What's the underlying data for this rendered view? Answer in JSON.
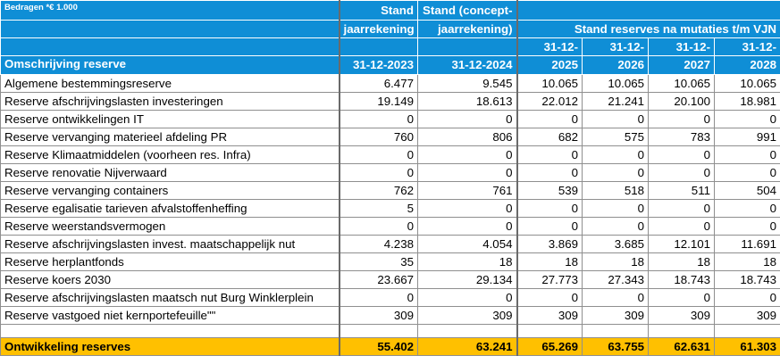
{
  "header": {
    "amounts_note": "Bedragen *€ 1.000",
    "col_description": "Omschrijving reserve",
    "col_stand_jaarrekening_l1": "Stand",
    "col_stand_jaarrekening_l2": "jaarrekening",
    "col_stand_concept_l1": "Stand (concept-",
    "col_stand_concept_l2": "jaarrekening)",
    "col_group_mutaties": "Stand reserves na mutaties t/m VJN",
    "dates": [
      "31-12-2023",
      "31-12-2024"
    ],
    "proj_dates_l1": [
      "31-12-",
      "31-12-",
      "31-12-",
      "31-12-"
    ],
    "proj_dates_l2": [
      "2025",
      "2026",
      "2027",
      "2028"
    ]
  },
  "rows": [
    {
      "name": "Algemene bestemmingsreserve",
      "v": [
        "6.477",
        "9.545",
        "10.065",
        "10.065",
        "10.065",
        "10.065"
      ]
    },
    {
      "name": "Reserve afschrijvingslasten investeringen",
      "v": [
        "19.149",
        "18.613",
        "22.012",
        "21.241",
        "20.100",
        "18.981"
      ]
    },
    {
      "name": "Reserve ontwikkelingen IT",
      "v": [
        "0",
        "0",
        "0",
        "0",
        "0",
        "0"
      ]
    },
    {
      "name": "Reserve vervanging materieel afdeling PR",
      "v": [
        "760",
        "806",
        "682",
        "575",
        "783",
        "991"
      ]
    },
    {
      "name": "Reserve Klimaatmiddelen (voorheen res. Infra)",
      "v": [
        "0",
        "0",
        "0",
        "0",
        "0",
        "0"
      ]
    },
    {
      "name": "Reserve renovatie Nijverwaard",
      "v": [
        "0",
        "0",
        "0",
        "0",
        "0",
        "0"
      ]
    },
    {
      "name": "Reserve vervanging containers",
      "v": [
        "762",
        "761",
        "539",
        "518",
        "511",
        "504"
      ]
    },
    {
      "name": "Reserve egalisatie tarieven afvalstoffenheffing",
      "v": [
        "5",
        "0",
        "0",
        "0",
        "0",
        "0"
      ]
    },
    {
      "name": "Reserve weerstandsvermogen",
      "v": [
        "0",
        "0",
        "0",
        "0",
        "0",
        "0"
      ]
    },
    {
      "name": "Reserve afschrijvingslasten invest. maatschappelijk nut",
      "v": [
        "4.238",
        "4.054",
        "3.869",
        "3.685",
        "12.101",
        "11.691"
      ]
    },
    {
      "name": "Reserve herplantfonds",
      "v": [
        "35",
        "18",
        "18",
        "18",
        "18",
        "18"
      ]
    },
    {
      "name": "Reserve koers 2030",
      "v": [
        "23.667",
        "29.134",
        "27.773",
        "27.343",
        "18.743",
        "18.743"
      ]
    },
    {
      "name": "Reserve afschrijvingslasten maatsch nut Burg Winklerplein",
      "v": [
        "0",
        "0",
        "0",
        "0",
        "0",
        "0"
      ]
    },
    {
      "name": "Reserve vastgoed niet kernportefeuille\"\"",
      "v": [
        "309",
        "309",
        "309",
        "309",
        "309",
        "309"
      ]
    }
  ],
  "total": {
    "name": "Ontwikkeling reserves",
    "v": [
      "55.402",
      "63.241",
      "65.269",
      "63.755",
      "62.631",
      "61.303"
    ]
  }
}
